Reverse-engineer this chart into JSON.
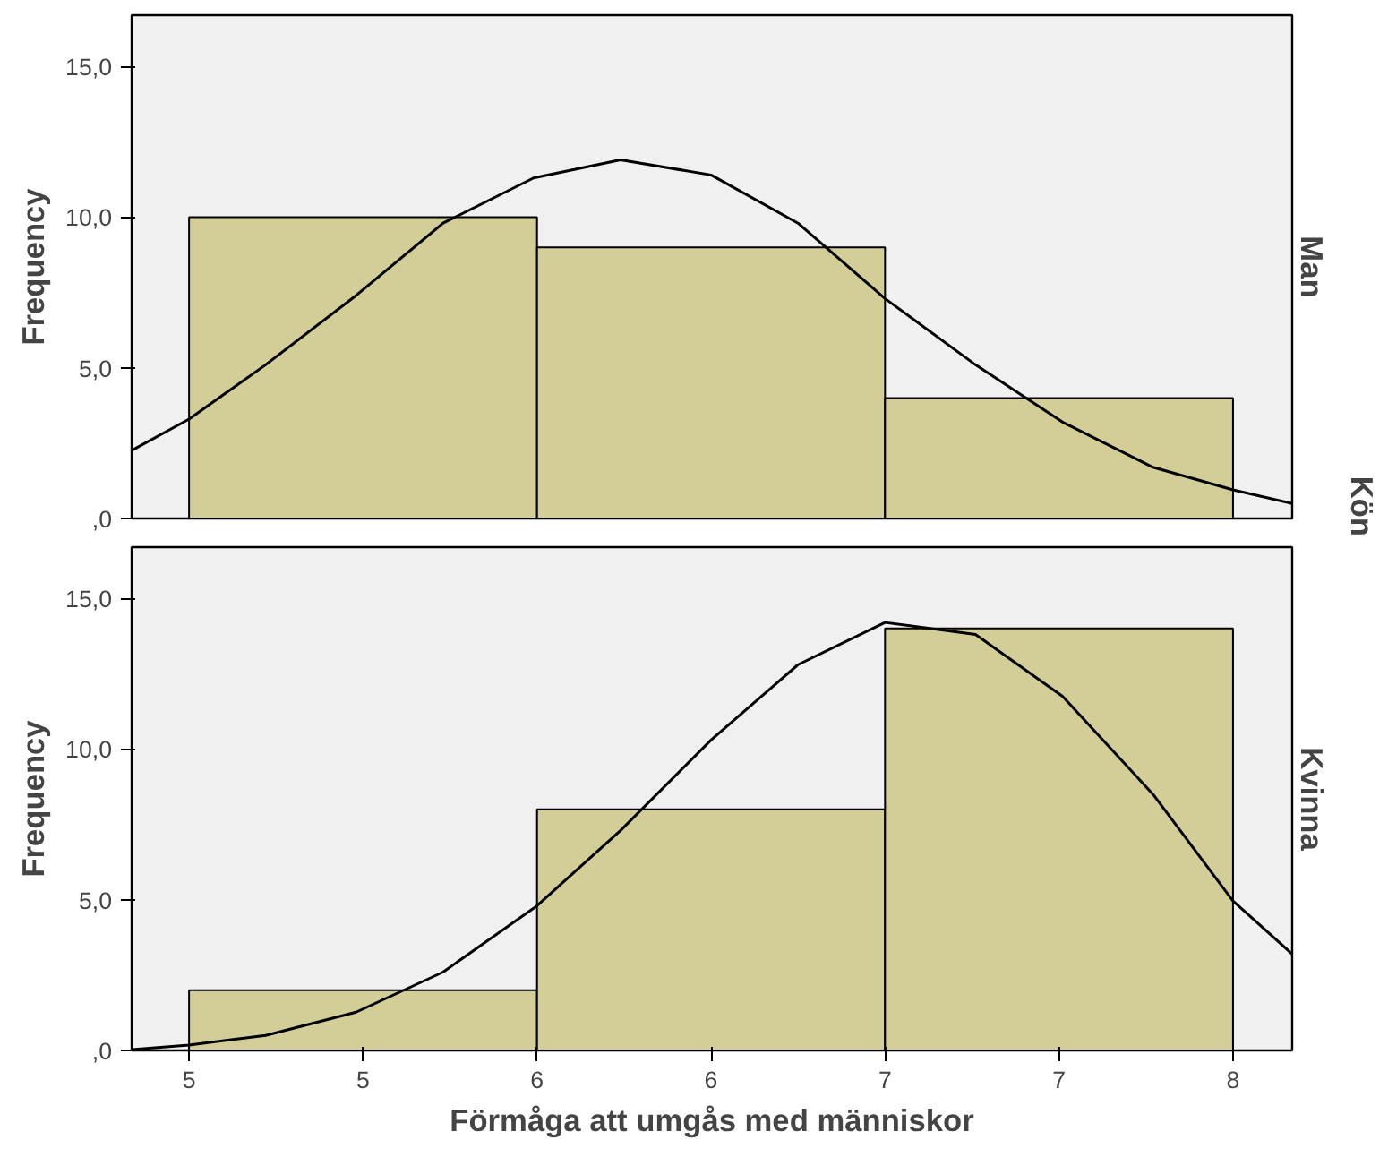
{
  "chart_data": [
    {
      "type": "histogram",
      "bins": [
        5,
        6,
        7,
        8
      ],
      "values": [
        10,
        9,
        4
      ],
      "color": "#d3ce97",
      "y2label": "Man",
      "ylabel": "Frequency",
      "annotations": [
        "Kön"
      ],
      "xlim": [
        4.835,
        8.17
      ],
      "ylim": [
        0,
        16.7
      ],
      "yticks": [
        {
          "value": 0,
          "label": ",0"
        },
        {
          "value": 5,
          "label": "5,0"
        },
        {
          "value": 10,
          "label": "10,0"
        },
        {
          "value": 15,
          "label": "15,0"
        }
      ],
      "tick_labels": "y",
      "grid": false,
      "series": [
        {
          "type": "line",
          "color": "#000000",
          "x": [
            4.837,
            5,
            5.22,
            5.48,
            5.73,
            5.99,
            6.24,
            6.5,
            6.75,
            7.0,
            7.26,
            7.51,
            7.77,
            8.0,
            8.17
          ],
          "values": [
            2.27,
            3.3,
            5.1,
            7.4,
            9.8,
            11.3,
            11.9,
            11.4,
            9.8,
            7.3,
            5.1,
            3.2,
            1.7,
            0.95,
            0.5
          ]
        }
      ]
    },
    {
      "type": "histogram",
      "bins": [
        5,
        6,
        7,
        8
      ],
      "values": [
        2,
        8,
        14
      ],
      "color": "#d3ce97",
      "y2label": "Kvinna",
      "ylabel": "Frequency",
      "xlabel": "Förmåga att umgås med människor",
      "xlim": [
        4.835,
        8.17
      ],
      "ylim": [
        0,
        16.7
      ],
      "xticks": [
        5,
        {
          "value": 5.5,
          "label": "5"
        },
        6,
        {
          "value": 6.5,
          "label": "6"
        },
        7,
        {
          "value": 7.5,
          "label": "7"
        },
        8
      ],
      "yticks": [
        {
          "value": 0,
          "label": ",0"
        },
        {
          "value": 5,
          "label": "5,0"
        },
        {
          "value": 10,
          "label": "10,0"
        },
        {
          "value": 15,
          "label": "15,0"
        }
      ],
      "grid": false,
      "series": [
        {
          "type": "line",
          "color": "#000000",
          "x": [
            4.837,
            5,
            5.22,
            5.48,
            5.73,
            6.0,
            6.24,
            6.5,
            6.75,
            7.0,
            7.26,
            7.51,
            7.77,
            8.0,
            8.17
          ],
          "values": [
            0.03,
            0.18,
            0.5,
            1.27,
            2.6,
            4.8,
            7.3,
            10.3,
            12.8,
            14.2,
            13.8,
            11.75,
            8.5,
            4.96,
            3.2
          ]
        }
      ]
    }
  ]
}
